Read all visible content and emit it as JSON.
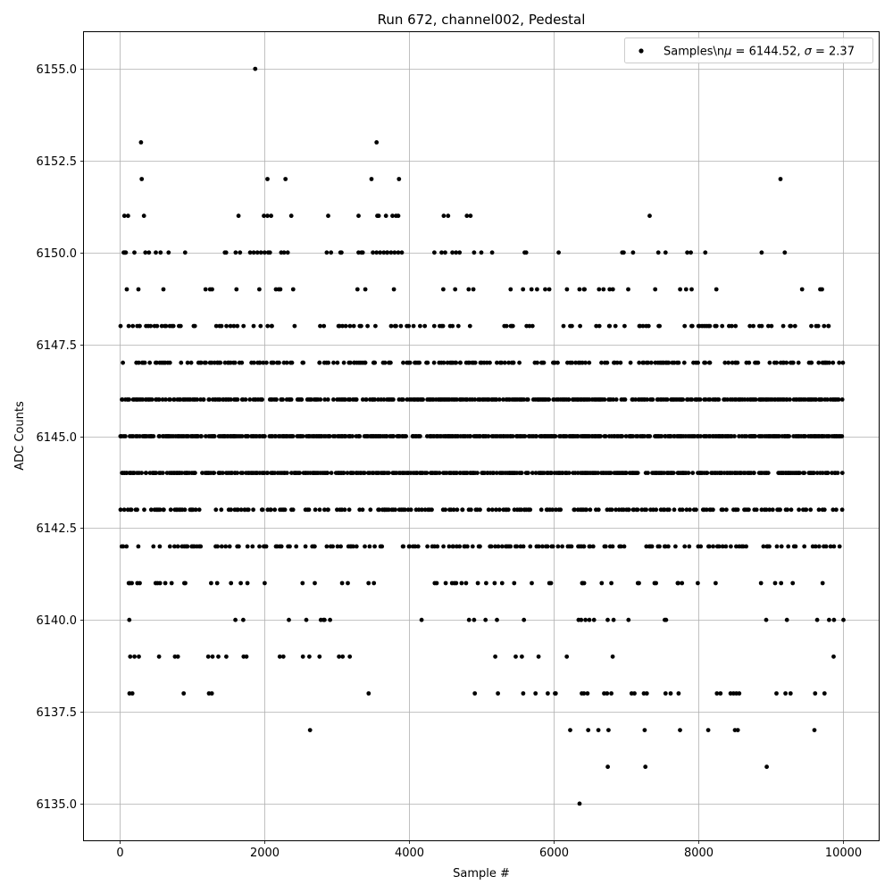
{
  "chart_data": {
    "type": "scatter",
    "title": "Run 672, channel002, Pedestal",
    "xlabel": "Sample #",
    "ylabel": "ADC Counts",
    "xlim": [
      -500,
      10500
    ],
    "ylim": [
      6134,
      6156
    ],
    "x_ticks": [
      0,
      2000,
      4000,
      6000,
      8000,
      10000
    ],
    "x_tick_labels": [
      "0",
      "2000",
      "4000",
      "6000",
      "8000",
      "10000"
    ],
    "y_ticks": [
      6135.0,
      6137.5,
      6140.0,
      6142.5,
      6145.0,
      6147.5,
      6150.0,
      6152.5,
      6155.0
    ],
    "y_tick_labels": [
      "6135.0",
      "6137.5",
      "6140.0",
      "6142.5",
      "6145.0",
      "6147.5",
      "6150.0",
      "6152.5",
      "6155.0"
    ],
    "grid": true,
    "legend_position": "top-right",
    "series": [
      {
        "name": "Samples\\nμ = 6144.52, σ = 2.37",
        "name_prefix": "Samples\\n",
        "mu_symbol": "μ",
        "mu_text": " = 6144.52, ",
        "sigma_symbol": "σ",
        "sigma_text": " = 2.37",
        "color": "#000000",
        "marker": "circle",
        "mean": 6144.52,
        "std": 2.37,
        "n_samples": 10000,
        "bands": [
          {
            "y": 6143,
            "density": 0.33,
            "ranges": [
              [
                0,
                10000
              ]
            ]
          },
          {
            "y": 6144,
            "density": 0.62,
            "ranges": [
              [
                0,
                10000
              ]
            ]
          },
          {
            "y": 6145,
            "density": 0.68,
            "ranges": [
              [
                0,
                10000
              ]
            ]
          },
          {
            "y": 6146,
            "density": 0.58,
            "ranges": [
              [
                0,
                10000
              ]
            ]
          },
          {
            "y": 6147,
            "density": 0.34,
            "ranges": [
              [
                0,
                10000
              ]
            ]
          },
          {
            "y": 6142,
            "density": 0.22,
            "ranges": [
              [
                0,
                3620
              ],
              [
                3900,
                10000
              ]
            ]
          },
          {
            "y": 6148,
            "density": 0.16,
            "ranges": [
              [
                0,
                2500
              ],
              [
                2680,
                10000
              ]
            ]
          },
          {
            "y": 6141,
            "density": 0.1,
            "ranges": [
              [
                80,
                3620
              ],
              [
                4150,
                10000
              ]
            ]
          },
          {
            "y": 6149,
            "density": 0.06,
            "ranges": [
              [
                0,
                4200
              ],
              [
                4400,
                10000
              ]
            ]
          },
          {
            "y": 6140,
            "density": 0.03,
            "ranges": [
              [
                100,
                3650
              ],
              [
                4150,
                10000
              ]
            ]
          },
          {
            "y": 6150,
            "density": 0.025,
            "ranges": [
              [
                0,
                4000
              ]
            ]
          },
          {
            "y": 6139,
            "density": 0.012,
            "ranges": [
              [
                4200,
                10000
              ]
            ]
          },
          {
            "y": 6138,
            "density": 0.004,
            "ranges": [
              [
                5400,
                10000
              ]
            ]
          }
        ],
        "points": [
          [
            50,
            6150
          ],
          [
            60,
            6150
          ],
          [
            70,
            6150
          ],
          [
            80,
            6150
          ],
          [
            350,
            6150
          ],
          [
            400,
            6150
          ],
          [
            560,
            6150
          ],
          [
            900,
            6150
          ],
          [
            1450,
            6150
          ],
          [
            1600,
            6150
          ],
          [
            1660,
            6150
          ],
          [
            1800,
            6150
          ],
          [
            1850,
            6150
          ],
          [
            1900,
            6150
          ],
          [
            1950,
            6150
          ],
          [
            2000,
            6150
          ],
          [
            2050,
            6150
          ],
          [
            2230,
            6150
          ],
          [
            2270,
            6150
          ],
          [
            2860,
            6150
          ],
          [
            3050,
            6150
          ],
          [
            3300,
            6150
          ],
          [
            3340,
            6150
          ],
          [
            3500,
            6150
          ],
          [
            3550,
            6150
          ],
          [
            3600,
            6150
          ],
          [
            3650,
            6150
          ],
          [
            3700,
            6150
          ],
          [
            3750,
            6150
          ],
          [
            3800,
            6150
          ],
          [
            3850,
            6150
          ],
          [
            3900,
            6150
          ],
          [
            4350,
            6150
          ],
          [
            4450,
            6150
          ],
          [
            4500,
            6150
          ],
          [
            4600,
            6150
          ],
          [
            4650,
            6150
          ],
          [
            4700,
            6150
          ],
          [
            4900,
            6150
          ],
          [
            5000,
            6150
          ],
          [
            5150,
            6150
          ],
          [
            5600,
            6150
          ],
          [
            5620,
            6150
          ],
          [
            6070,
            6150
          ],
          [
            6950,
            6150
          ],
          [
            6970,
            6150
          ],
          [
            7100,
            6150
          ],
          [
            7450,
            6150
          ],
          [
            7550,
            6150
          ],
          [
            7850,
            6150
          ],
          [
            7900,
            6150
          ],
          [
            8100,
            6150
          ],
          [
            8880,
            6150
          ],
          [
            9200,
            6150
          ],
          [
            60,
            6151
          ],
          [
            110,
            6151
          ],
          [
            330,
            6151
          ],
          [
            1640,
            6151
          ],
          [
            1990,
            6151
          ],
          [
            2040,
            6151
          ],
          [
            2090,
            6151
          ],
          [
            2370,
            6151
          ],
          [
            2880,
            6151
          ],
          [
            3300,
            6151
          ],
          [
            3560,
            6151
          ],
          [
            3580,
            6151
          ],
          [
            3680,
            6151
          ],
          [
            3770,
            6151
          ],
          [
            3820,
            6151
          ],
          [
            3850,
            6151
          ],
          [
            4480,
            6151
          ],
          [
            4540,
            6151
          ],
          [
            4800,
            6151
          ],
          [
            4850,
            6151
          ],
          [
            7330,
            6151
          ],
          [
            300,
            6152
          ],
          [
            2040,
            6152
          ],
          [
            2290,
            6152
          ],
          [
            3480,
            6152
          ],
          [
            3860,
            6152
          ],
          [
            9140,
            6152
          ],
          [
            290,
            6153
          ],
          [
            3550,
            6153
          ],
          [
            1870,
            6155
          ],
          [
            130,
            6138
          ],
          [
            170,
            6138
          ],
          [
            880,
            6138
          ],
          [
            1230,
            6138
          ],
          [
            1270,
            6138
          ],
          [
            3440,
            6138
          ],
          [
            4910,
            6138
          ],
          [
            5230,
            6138
          ],
          [
            5580,
            6138
          ],
          [
            5750,
            6138
          ],
          [
            5920,
            6138
          ],
          [
            6020,
            6138
          ],
          [
            6390,
            6138
          ],
          [
            6420,
            6138
          ],
          [
            6470,
            6138
          ],
          [
            6700,
            6138
          ],
          [
            6740,
            6138
          ],
          [
            6800,
            6138
          ],
          [
            7080,
            6138
          ],
          [
            7120,
            6138
          ],
          [
            7250,
            6138
          ],
          [
            7290,
            6138
          ],
          [
            7550,
            6138
          ],
          [
            7620,
            6138
          ],
          [
            7730,
            6138
          ],
          [
            8260,
            6138
          ],
          [
            8310,
            6138
          ],
          [
            8450,
            6138
          ],
          [
            8490,
            6138
          ],
          [
            8530,
            6138
          ],
          [
            8570,
            6138
          ],
          [
            9210,
            6138
          ],
          [
            9280,
            6138
          ],
          [
            9620,
            6138
          ],
          [
            9750,
            6138
          ],
          [
            140,
            6139
          ],
          [
            200,
            6139
          ],
          [
            260,
            6139
          ],
          [
            540,
            6139
          ],
          [
            760,
            6139
          ],
          [
            800,
            6139
          ],
          [
            1220,
            6139
          ],
          [
            1280,
            6139
          ],
          [
            1360,
            6139
          ],
          [
            1470,
            6139
          ],
          [
            1710,
            6139
          ],
          [
            1750,
            6139
          ],
          [
            2210,
            6139
          ],
          [
            2260,
            6139
          ],
          [
            2530,
            6139
          ],
          [
            2620,
            6139
          ],
          [
            2760,
            6139
          ],
          [
            3030,
            6139
          ],
          [
            3080,
            6139
          ],
          [
            3180,
            6139
          ],
          [
            2630,
            6137
          ],
          [
            6230,
            6137
          ],
          [
            6480,
            6137
          ],
          [
            6620,
            6137
          ],
          [
            6760,
            6137
          ],
          [
            7260,
            6137
          ],
          [
            7750,
            6137
          ],
          [
            8140,
            6137
          ],
          [
            8510,
            6137
          ],
          [
            8550,
            6137
          ],
          [
            9610,
            6137
          ],
          [
            6750,
            6136
          ],
          [
            7270,
            6136
          ],
          [
            8950,
            6136
          ],
          [
            6360,
            6135
          ]
        ]
      }
    ]
  }
}
